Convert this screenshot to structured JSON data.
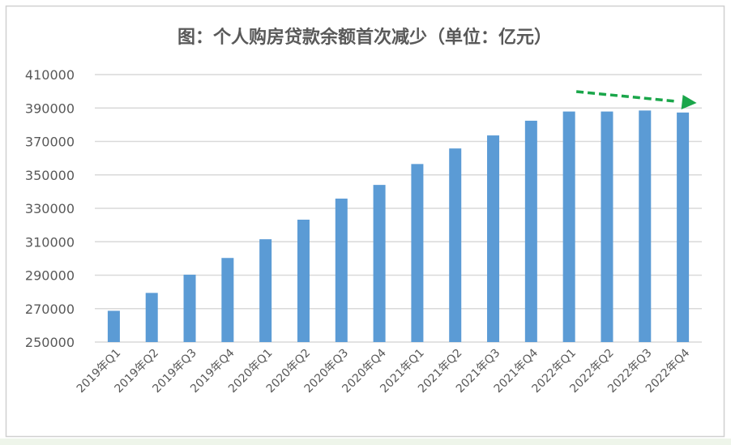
{
  "chart_data": {
    "type": "bar",
    "title": "图：个人购房贷款余额首次减少（单位：亿元）",
    "xlabel": "",
    "ylabel": "",
    "ylim": [
      250000,
      410000
    ],
    "yticks": [
      "250000",
      "270000",
      "290000",
      "310000",
      "330000",
      "350000",
      "370000",
      "390000",
      "410000"
    ],
    "grid": true,
    "legend": "none",
    "categories": [
      "2019年Q1",
      "2019年Q2",
      "2019年Q3",
      "2019年Q4",
      "2020年Q1",
      "2020年Q2",
      "2020年Q3",
      "2020年Q4",
      "2021年Q1",
      "2021年Q2",
      "2021年Q3",
      "2021年Q4",
      "2022年Q1",
      "2022年Q2",
      "2022年Q3",
      "2022年Q4"
    ],
    "values": [
      268700,
      279400,
      290300,
      300300,
      311500,
      323200,
      335800,
      344000,
      356500,
      365800,
      373600,
      382400,
      387900,
      387900,
      388500,
      387300
    ],
    "annotations": [
      {
        "type": "dashed-arrow",
        "direction": "down-right",
        "from_category": "2022年Q1",
        "to_category": "2022年Q4",
        "color": "#1aa64a"
      }
    ],
    "colors": {
      "bar": "#5b9bd5",
      "grid": "#d9d9d9",
      "text": "#595959",
      "arrow": "#1aa64a"
    }
  }
}
